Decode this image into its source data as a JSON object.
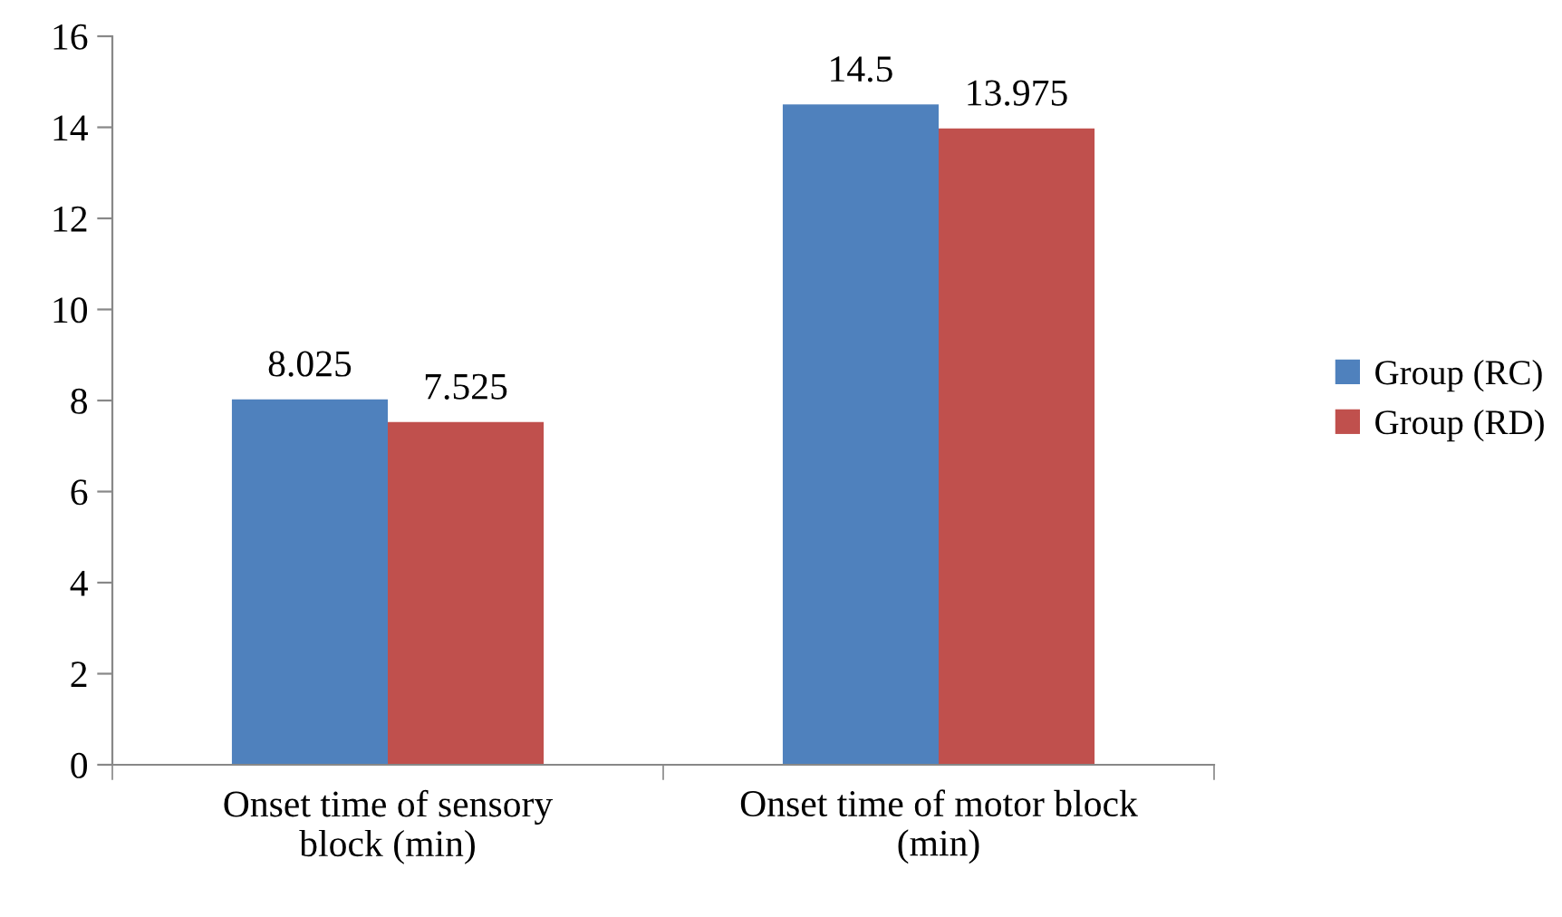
{
  "chart_data": {
    "type": "bar",
    "categories": [
      "Onset time of sensory\nblock (min)",
      "Onset time of motor block\n(min)"
    ],
    "series": [
      {
        "name": "Group (RC)",
        "color": "#4f81bd",
        "values": [
          8.025,
          14.5
        ]
      },
      {
        "name": "Group (RD)",
        "color": "#c0504d",
        "values": [
          7.525,
          13.975
        ]
      }
    ],
    "ylim": [
      0,
      16
    ],
    "yticks": [
      0,
      2,
      4,
      6,
      8,
      10,
      12,
      14,
      16
    ],
    "grid": false,
    "legend": "right",
    "data_labels": true
  }
}
